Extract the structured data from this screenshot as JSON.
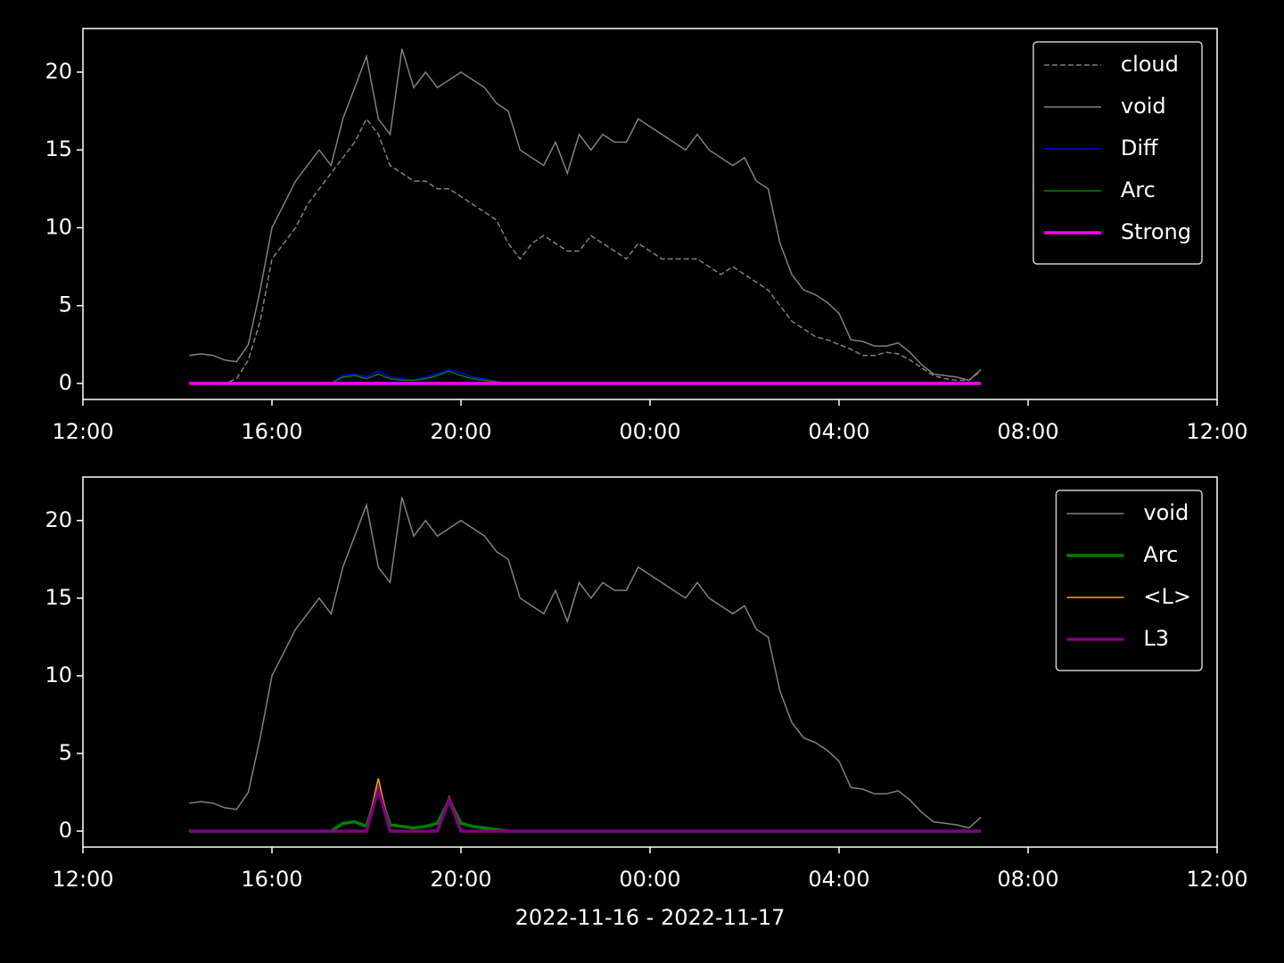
{
  "chart_data": [
    {
      "type": "line",
      "legend": "upper right",
      "x": [
        2.25,
        2.5,
        2.75,
        3.0,
        3.25,
        3.5,
        3.75,
        4.0,
        4.25,
        4.5,
        4.75,
        5.0,
        5.25,
        5.5,
        5.75,
        6.0,
        6.25,
        6.5,
        6.75,
        7.0,
        7.25,
        7.5,
        7.75,
        8.0,
        8.25,
        8.5,
        8.75,
        9.0,
        9.25,
        9.5,
        9.75,
        10.0,
        10.25,
        10.5,
        10.75,
        11.0,
        11.25,
        11.5,
        11.75,
        12.0,
        12.25,
        12.5,
        12.75,
        13.0,
        13.25,
        13.5,
        13.75,
        14.0,
        14.25,
        14.5,
        14.75,
        15.0,
        15.25,
        15.5,
        15.75,
        16.0,
        16.25,
        16.5,
        16.75,
        17.0,
        17.25,
        17.5,
        17.75,
        18.0,
        18.25,
        18.5,
        18.75,
        19.0
      ],
      "xlim": [
        0,
        24
      ],
      "xticks": [
        {
          "value": 0,
          "label": "12:00"
        },
        {
          "value": 4,
          "label": "16:00"
        },
        {
          "value": 8,
          "label": "20:00"
        },
        {
          "value": 12,
          "label": "00:00"
        },
        {
          "value": 16,
          "label": "04:00"
        },
        {
          "value": 20,
          "label": "08:00"
        },
        {
          "value": 24,
          "label": "12:00"
        }
      ],
      "ylim": [
        -1.03,
        22.8
      ],
      "yticks": [
        0,
        5,
        10,
        15,
        20
      ],
      "series": [
        {
          "name": "cloud",
          "color": "#808080",
          "linestyle": "dashed",
          "linewidth": 1.5,
          "values": [
            0,
            0,
            0,
            0,
            0.3,
            1.5,
            4,
            8,
            9,
            10,
            11.5,
            12.5,
            13.5,
            14.5,
            15.5,
            17,
            16,
            14,
            13.5,
            13,
            13,
            12.5,
            12.5,
            12,
            11.5,
            11,
            10.5,
            9,
            8,
            9,
            9.5,
            9,
            8.5,
            8.5,
            9.5,
            9,
            8.5,
            8,
            9,
            8.5,
            8,
            8,
            8,
            8,
            7.5,
            7,
            7.5,
            7,
            6.5,
            6,
            5,
            4,
            3.5,
            3,
            2.8,
            2.5,
            2.2,
            1.8,
            1.8,
            2,
            1.9,
            1.5,
            1,
            0.5,
            0.3,
            0.2,
            0.2,
            0.8
          ]
        },
        {
          "name": "void",
          "color": "#808080",
          "linestyle": "solid",
          "linewidth": 1.5,
          "values": [
            1.8,
            1.9,
            1.8,
            1.5,
            1.4,
            2.5,
            6,
            10,
            11.5,
            13,
            14,
            15,
            14,
            17,
            19,
            21,
            17,
            16,
            21.5,
            19,
            20,
            19,
            19.5,
            20,
            19.5,
            19,
            18,
            17.5,
            15,
            14.5,
            14,
            15.5,
            13.5,
            16,
            15,
            16,
            15.5,
            15.5,
            17,
            16.5,
            16,
            15.5,
            15,
            16,
            15,
            14.5,
            14,
            14.5,
            13,
            12.5,
            9,
            7,
            6,
            5.7,
            5.2,
            4.5,
            2.8,
            2.7,
            2.4,
            2.4,
            2.6,
            2,
            1.2,
            0.6,
            0.5,
            0.4,
            0.2,
            0.9
          ]
        },
        {
          "name": "Diff",
          "color": "#0000ff",
          "linestyle": "solid",
          "linewidth": 1.5,
          "values": [
            0,
            0,
            0,
            0,
            0,
            0,
            0,
            0,
            0,
            0,
            0,
            0,
            0,
            0.5,
            0.6,
            0.4,
            0.8,
            0.4,
            0.3,
            0.2,
            0.4,
            0.6,
            0.9,
            0.7,
            0.4,
            0.3,
            0.1,
            0,
            0,
            0,
            0,
            0,
            0,
            0,
            0,
            0,
            0,
            0,
            0,
            0,
            0,
            0,
            0,
            0,
            0,
            0,
            0,
            0,
            0,
            0,
            0,
            0,
            0,
            0,
            0,
            0,
            0,
            0,
            0,
            0,
            0,
            0,
            0,
            0,
            0,
            0,
            0,
            0
          ]
        },
        {
          "name": "Arc",
          "color": "#008000",
          "linestyle": "solid",
          "linewidth": 1.5,
          "values": [
            0,
            0,
            0,
            0,
            0,
            0,
            0,
            0,
            0,
            0,
            0,
            0,
            0,
            0.4,
            0.5,
            0.3,
            0.6,
            0.3,
            0.2,
            0.2,
            0.3,
            0.5,
            0.8,
            0.5,
            0.3,
            0.2,
            0.1,
            0,
            0,
            0,
            0,
            0,
            0,
            0,
            0,
            0,
            0,
            0,
            0,
            0,
            0,
            0,
            0,
            0,
            0,
            0,
            0,
            0,
            0,
            0,
            0,
            0,
            0,
            0,
            0,
            0,
            0,
            0,
            0,
            0,
            0,
            0,
            0,
            0,
            0,
            0,
            0,
            0
          ]
        },
        {
          "name": "Strong",
          "color": "#ff00ff",
          "linestyle": "solid",
          "linewidth": 3.5,
          "values": [
            0,
            0,
            0,
            0,
            0,
            0,
            0,
            0,
            0,
            0,
            0,
            0,
            0,
            0,
            0,
            0,
            0,
            0,
            0,
            0,
            0,
            0,
            0,
            0,
            0,
            0,
            0,
            0,
            0,
            0,
            0,
            0,
            0,
            0,
            0,
            0,
            0,
            0,
            0,
            0,
            0,
            0,
            0,
            0,
            0,
            0,
            0,
            0,
            0,
            0,
            0,
            0,
            0,
            0,
            0,
            0,
            0,
            0,
            0,
            0,
            0,
            0,
            0,
            0,
            0,
            0,
            0,
            0
          ]
        }
      ]
    },
    {
      "type": "line",
      "legend": "upper right",
      "xlabel": "2022-11-16 - 2022-11-17",
      "x": [
        2.25,
        2.5,
        2.75,
        3.0,
        3.25,
        3.5,
        3.75,
        4.0,
        4.25,
        4.5,
        4.75,
        5.0,
        5.25,
        5.5,
        5.75,
        6.0,
        6.25,
        6.5,
        6.75,
        7.0,
        7.25,
        7.5,
        7.75,
        8.0,
        8.25,
        8.5,
        8.75,
        9.0,
        9.25,
        9.5,
        9.75,
        10.0,
        10.25,
        10.5,
        10.75,
        11.0,
        11.25,
        11.5,
        11.75,
        12.0,
        12.25,
        12.5,
        12.75,
        13.0,
        13.25,
        13.5,
        13.75,
        14.0,
        14.25,
        14.5,
        14.75,
        15.0,
        15.25,
        15.5,
        15.75,
        16.0,
        16.25,
        16.5,
        16.75,
        17.0,
        17.25,
        17.5,
        17.75,
        18.0,
        18.25,
        18.5,
        18.75,
        19.0
      ],
      "xlim": [
        0,
        24
      ],
      "xticks": [
        {
          "value": 0,
          "label": "12:00"
        },
        {
          "value": 4,
          "label": "16:00"
        },
        {
          "value": 8,
          "label": "20:00"
        },
        {
          "value": 12,
          "label": "00:00"
        },
        {
          "value": 16,
          "label": "04:00"
        },
        {
          "value": 20,
          "label": "08:00"
        },
        {
          "value": 24,
          "label": "12:00"
        }
      ],
      "ylim": [
        -1.03,
        22.8
      ],
      "yticks": [
        0,
        5,
        10,
        15,
        20
      ],
      "series": [
        {
          "name": "void",
          "color": "#808080",
          "linestyle": "solid",
          "linewidth": 1.5,
          "values": [
            1.8,
            1.9,
            1.8,
            1.5,
            1.4,
            2.5,
            6,
            10,
            11.5,
            13,
            14,
            15,
            14,
            17,
            19,
            21,
            17,
            16,
            21.5,
            19,
            20,
            19,
            19.5,
            20,
            19.5,
            19,
            18,
            17.5,
            15,
            14.5,
            14,
            15.5,
            13.5,
            16,
            15,
            16,
            15.5,
            15.5,
            17,
            16.5,
            16,
            15.5,
            15,
            16,
            15,
            14.5,
            14,
            14.5,
            13,
            12.5,
            9,
            7,
            6,
            5.7,
            5.2,
            4.5,
            2.8,
            2.7,
            2.4,
            2.4,
            2.6,
            2,
            1.2,
            0.6,
            0.5,
            0.4,
            0.2,
            0.9
          ]
        },
        {
          "name": "Arc",
          "color": "#008000",
          "linestyle": "solid",
          "linewidth": 3.5,
          "values": [
            0,
            0,
            0,
            0,
            0,
            0,
            0,
            0,
            0,
            0,
            0,
            0,
            0,
            0.5,
            0.6,
            0.3,
            2.7,
            0.4,
            0.3,
            0.2,
            0.3,
            0.5,
            2.0,
            0.5,
            0.3,
            0.2,
            0.1,
            0,
            0,
            0,
            0,
            0,
            0,
            0,
            0,
            0,
            0,
            0,
            0,
            0,
            0,
            0,
            0,
            0,
            0,
            0,
            0,
            0,
            0,
            0,
            0,
            0,
            0,
            0,
            0,
            0,
            0,
            0,
            0,
            0,
            0,
            0,
            0,
            0,
            0,
            0,
            0,
            0
          ]
        },
        {
          "name": "<L>",
          "color": "#ffa500",
          "linestyle": "solid",
          "linewidth": 1.5,
          "values": [
            0,
            0,
            0,
            0,
            0,
            0,
            0,
            0,
            0,
            0,
            0,
            0,
            0,
            0,
            0,
            0,
            3.4,
            0,
            0,
            0,
            0,
            0,
            2.2,
            0,
            0,
            0,
            0,
            0,
            0,
            0,
            0,
            0,
            0,
            0,
            0,
            0,
            0,
            0,
            0,
            0,
            0,
            0,
            0,
            0,
            0,
            0,
            0,
            0,
            0,
            0,
            0,
            0,
            0,
            0,
            0,
            0,
            0,
            0,
            0,
            0,
            0,
            0,
            0,
            0,
            0,
            0,
            0,
            0
          ]
        },
        {
          "name": "L3",
          "color": "#800080",
          "linestyle": "solid",
          "linewidth": 3.5,
          "values": [
            0,
            0,
            0,
            0,
            0,
            0,
            0,
            0,
            0,
            0,
            0,
            0,
            0,
            0,
            0,
            0,
            2.7,
            0,
            0,
            0,
            0,
            0,
            2.0,
            0,
            0,
            0,
            0,
            0,
            0,
            0,
            0,
            0,
            0,
            0,
            0,
            0,
            0,
            0,
            0,
            0,
            0,
            0,
            0,
            0,
            0,
            0,
            0,
            0,
            0,
            0,
            0,
            0,
            0,
            0,
            0,
            0,
            0,
            0,
            0,
            0,
            0,
            0,
            0,
            0,
            0,
            0,
            0,
            0
          ]
        }
      ]
    }
  ]
}
